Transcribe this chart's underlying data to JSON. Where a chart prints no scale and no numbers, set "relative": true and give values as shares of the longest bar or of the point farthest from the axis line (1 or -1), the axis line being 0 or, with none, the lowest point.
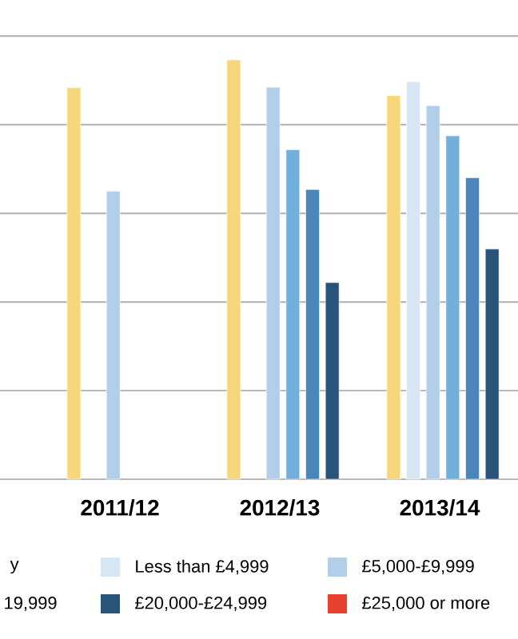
{
  "chart_data": {
    "type": "bar",
    "relative": true,
    "categories": [
      "2011/12",
      "2012/13",
      "2013/14"
    ],
    "series": [
      {
        "color": "#f5d67a",
        "values": [
          0.934,
          1,
          0.915
        ]
      },
      {
        "name": "Less than £4,999",
        "color": "#d6e6f4",
        "values": [
          null,
          null,
          0.948
        ]
      },
      {
        "name": "£5,000-£9,999",
        "color": "#b1cfe8",
        "values": [
          0.687,
          0.935,
          0.891
        ]
      },
      {
        "color": "#72b0dc",
        "values": [
          null,
          0.786,
          0.819
        ]
      },
      {
        "color": "#4a86bc",
        "values": [
          null,
          0.691,
          0.719
        ]
      },
      {
        "name": "£20,000-£24,999",
        "color": "#28547a",
        "values": [
          null,
          0.469,
          0.549
        ]
      },
      {
        "name": "£25,000 or more",
        "color": "#e8412f",
        "values": [
          null,
          null,
          null
        ]
      }
    ],
    "annotations": [
      "y",
      "19,999"
    ],
    "grid": true,
    "legend": "bottom"
  }
}
